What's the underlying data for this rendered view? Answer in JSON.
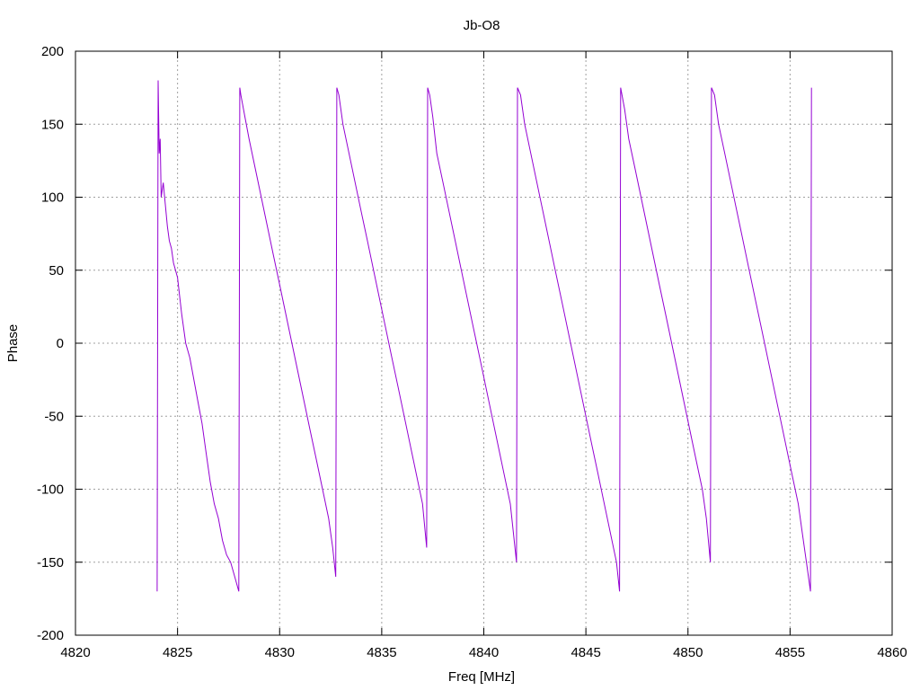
{
  "chart_data": {
    "type": "line",
    "title": "Jb-O8",
    "xlabel": "Freq [MHz]",
    "ylabel": "Phase",
    "xlim": [
      4820,
      4860
    ],
    "ylim": [
      -200,
      200
    ],
    "xticks": [
      4820,
      4825,
      4830,
      4835,
      4840,
      4845,
      4850,
      4855,
      4860
    ],
    "yticks": [
      -200,
      -150,
      -100,
      -50,
      0,
      50,
      100,
      150,
      200
    ],
    "grid": true,
    "line_color": "#9400d3",
    "series": [
      {
        "x": [
          4824.0,
          4824.05,
          4824.1,
          4824.15,
          4824.2,
          4824.3,
          4824.4,
          4824.5,
          4824.6,
          4824.7,
          4824.8,
          4825.0,
          4825.2,
          4825.4,
          4825.6,
          4825.8,
          4826.0,
          4826.2,
          4826.4,
          4826.6,
          4826.8,
          4827.0,
          4827.2,
          4827.4,
          4827.6,
          4827.8,
          4828.0,
          4828.05,
          4828.1,
          4828.3,
          4828.5,
          4828.8,
          4829.1,
          4829.4,
          4829.7,
          4830.0,
          4830.3,
          4830.6,
          4830.9,
          4831.2,
          4831.5,
          4831.8,
          4832.1,
          4832.4,
          4832.6,
          4832.75,
          4832.8,
          4832.9,
          4833.1,
          4833.4,
          4833.7,
          4834.0,
          4834.3,
          4834.6,
          4834.9,
          4835.2,
          4835.5,
          4835.8,
          4836.1,
          4836.4,
          4836.7,
          4837.0,
          4837.2,
          4837.25,
          4837.35,
          4837.5,
          4837.7,
          4838.0,
          4838.3,
          4838.6,
          4838.9,
          4839.2,
          4839.5,
          4839.8,
          4840.1,
          4840.4,
          4840.7,
          4841.0,
          4841.3,
          4841.6,
          4841.65,
          4841.8,
          4842.0,
          4842.3,
          4842.6,
          4842.9,
          4843.2,
          4843.5,
          4843.8,
          4844.1,
          4844.4,
          4844.7,
          4845.0,
          4845.3,
          4845.6,
          4845.9,
          4846.2,
          4846.5,
          4846.65,
          4846.7,
          4846.9,
          4847.1,
          4847.4,
          4847.7,
          4848.0,
          4848.3,
          4848.6,
          4848.9,
          4849.2,
          4849.5,
          4849.8,
          4850.1,
          4850.4,
          4850.7,
          4850.9,
          4851.1,
          4851.15,
          4851.3,
          4851.5,
          4851.8,
          4852.1,
          4852.4,
          4852.7,
          4853.0,
          4853.3,
          4853.6,
          4853.9,
          4854.2,
          4854.5,
          4854.8,
          4855.1,
          4855.4,
          4855.6,
          4855.8,
          4856.0,
          4856.05
        ],
        "y": [
          -170,
          180,
          130,
          140,
          100,
          110,
          95,
          80,
          70,
          65,
          55,
          45,
          20,
          0,
          -10,
          -25,
          -40,
          -55,
          -75,
          -95,
          -110,
          -120,
          -135,
          -145,
          -150,
          -160,
          -170,
          175,
          170,
          155,
          140,
          120,
          100,
          80,
          60,
          40,
          20,
          0,
          -20,
          -40,
          -60,
          -80,
          -100,
          -120,
          -140,
          -160,
          175,
          170,
          150,
          130,
          110,
          90,
          70,
          50,
          30,
          10,
          -10,
          -30,
          -50,
          -70,
          -90,
          -110,
          -140,
          175,
          170,
          155,
          130,
          110,
          90,
          70,
          50,
          30,
          10,
          -10,
          -30,
          -50,
          -70,
          -90,
          -110,
          -150,
          175,
          170,
          150,
          130,
          110,
          90,
          70,
          50,
          30,
          10,
          -10,
          -30,
          -50,
          -70,
          -90,
          -110,
          -130,
          -150,
          -170,
          175,
          160,
          140,
          120,
          100,
          80,
          60,
          40,
          20,
          0,
          -20,
          -40,
          -60,
          -80,
          -100,
          -120,
          -150,
          175,
          170,
          150,
          130,
          110,
          90,
          70,
          50,
          30,
          10,
          -10,
          -30,
          -50,
          -70,
          -90,
          -110,
          -130,
          -150,
          -170,
          175
        ]
      }
    ]
  }
}
